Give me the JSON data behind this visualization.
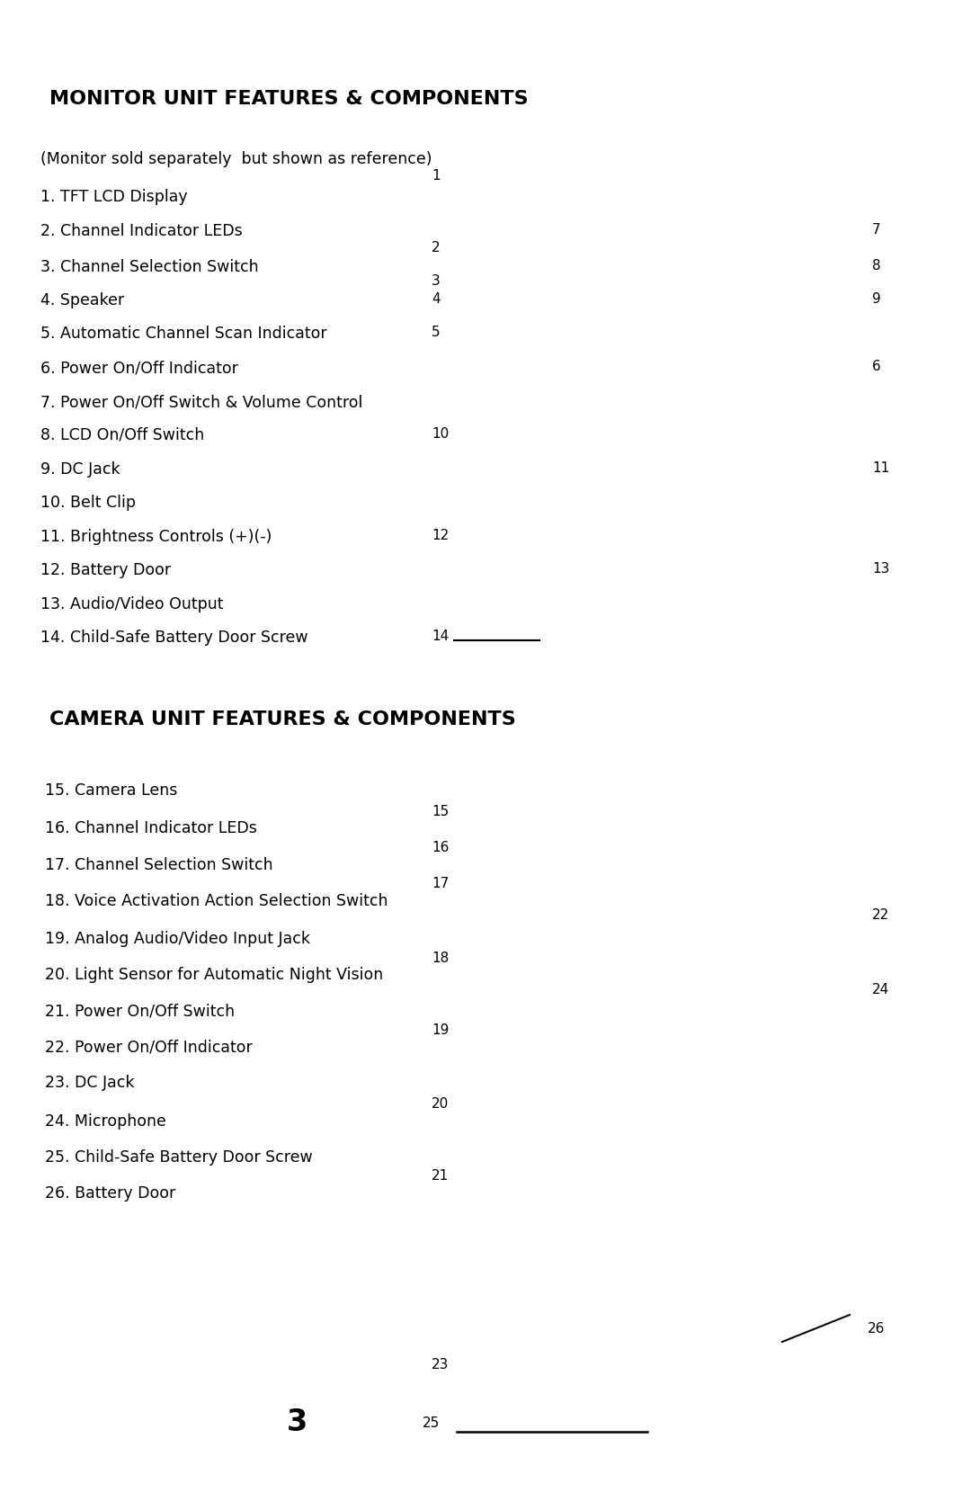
{
  "bg_color": "#ffffff",
  "title1": "MONITOR UNIT FEATURES & COMPONENTS",
  "title2": "CAMERA UNIT FEATURES & COMPONENTS",
  "monitor_items": [
    "(Monitor sold separately  but shown as reference)",
    "1. TFT LCD Display",
    "2. Channel Indicator LEDs",
    "3. Channel Selection Switch",
    "4. Speaker",
    "5. Automatic Channel Scan Indicator",
    "6. Power On/Off Indicator",
    "7. Power On/Off Switch & Volume Control",
    "8. LCD On/Off Switch",
    "9. DC Jack",
    "10. Belt Clip",
    "11. Brightness Controls (+)(-)",
    "12. Battery Door",
    "13. Audio/Video Output",
    "14. Child-Safe Battery Door Screw"
  ],
  "camera_items": [
    "15. Camera Lens",
    "16. Channel Indicator LEDs",
    "17. Channel Selection Switch",
    "18. Voice Activation Action Selection Switch",
    "19. Analog Audio/Video Input Jack",
    "20. Light Sensor for Automatic Night Vision",
    "21. Power On/Off Switch",
    "22. Power On/Off Indicator",
    "23. DC Jack",
    "24. Microphone",
    "25. Child-Safe Battery Door Screw",
    "26. Battery Door"
  ],
  "page_number": "3",
  "font_color": "#000000",
  "title_fontsize": 16,
  "body_fontsize": 12.5,
  "num_fontsize": 11,
  "page_num_fontsize": 24
}
